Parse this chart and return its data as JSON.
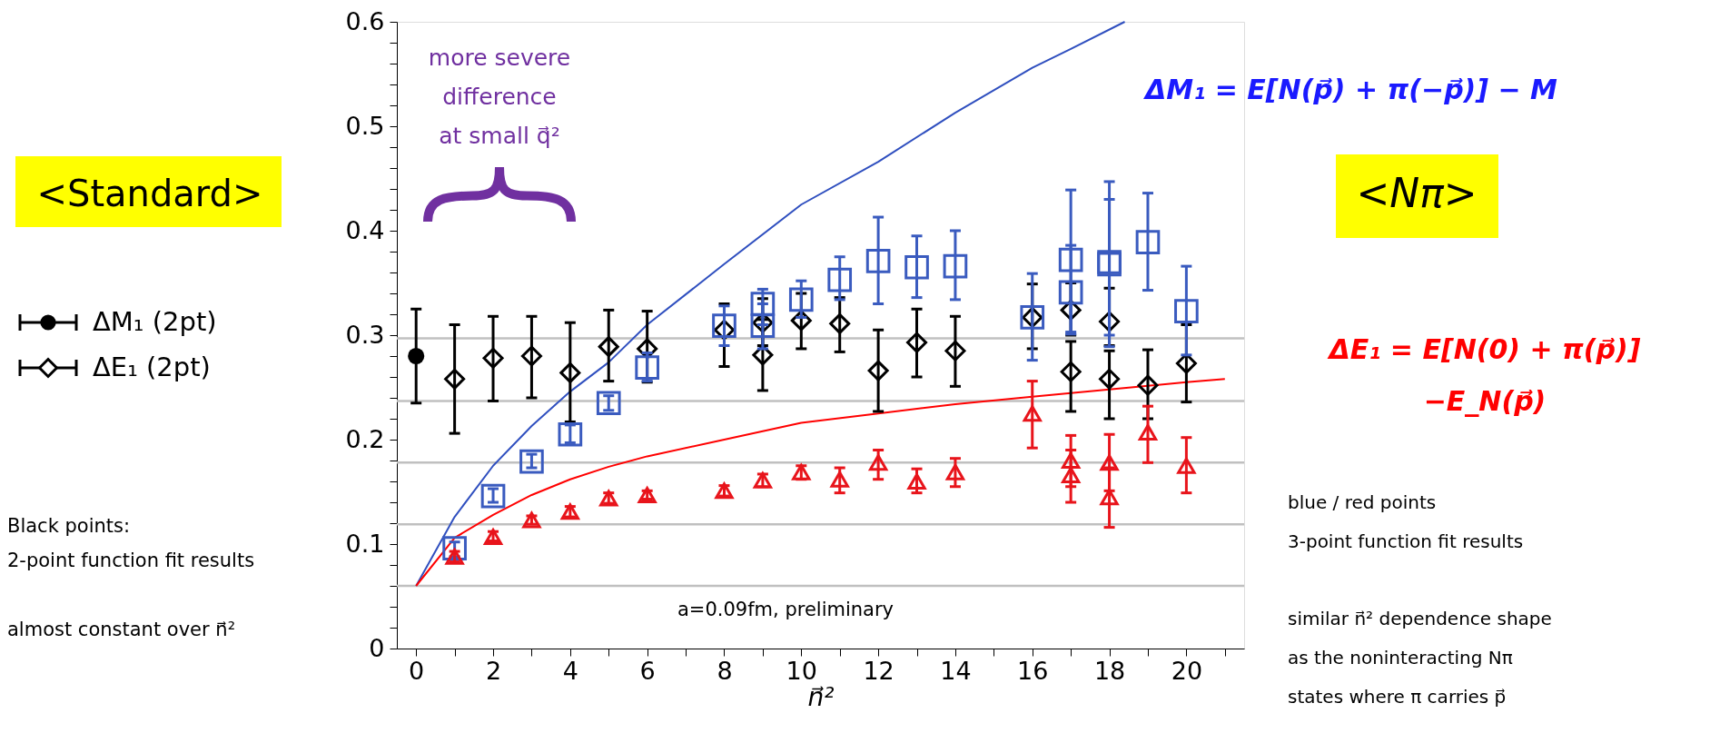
{
  "chart_data": {
    "type": "scatter",
    "xlabel": "n⃗²",
    "xlim": [
      -0.5,
      21.5
    ],
    "xticks": [
      0,
      {
        "value": 1,
        "label": null
      },
      2,
      {
        "value": 3,
        "label": null
      },
      4,
      {
        "value": 5,
        "label": null
      },
      6,
      {
        "value": 7,
        "label": null
      },
      8,
      {
        "value": 9,
        "label": null
      },
      10,
      {
        "value": 11,
        "label": null
      },
      12,
      {
        "value": 13,
        "label": null
      },
      14,
      {
        "value": 15,
        "label": null
      },
      16,
      {
        "value": 17,
        "label": null
      },
      18,
      {
        "value": 19,
        "label": null
      },
      20,
      {
        "value": 21,
        "label": null
      }
    ],
    "ylim": [
      0,
      0.6
    ],
    "yticks": [
      0,
      {
        "value": 0.02,
        "label": null
      },
      {
        "value": 0.04,
        "label": null
      },
      {
        "value": 0.06,
        "label": null
      },
      {
        "value": 0.08,
        "label": null
      },
      0.1,
      {
        "value": 0.12,
        "label": null
      },
      {
        "value": 0.14,
        "label": null
      },
      {
        "value": 0.16,
        "label": null
      },
      {
        "value": 0.18,
        "label": null
      },
      0.2,
      {
        "value": 0.22,
        "label": null
      },
      {
        "value": 0.24,
        "label": null
      },
      {
        "value": 0.26,
        "label": null
      },
      {
        "value": 0.28,
        "label": null
      },
      0.3,
      {
        "value": 0.32,
        "label": null
      },
      {
        "value": 0.34,
        "label": null
      },
      {
        "value": 0.36,
        "label": null
      },
      {
        "value": 0.38,
        "label": null
      },
      0.4,
      {
        "value": 0.42,
        "label": null
      },
      {
        "value": 0.44,
        "label": null
      },
      {
        "value": 0.46,
        "label": null
      },
      {
        "value": 0.48,
        "label": null
      },
      0.5,
      {
        "value": 0.52,
        "label": null
      },
      {
        "value": 0.54,
        "label": null
      },
      {
        "value": 0.56,
        "label": null
      },
      {
        "value": 0.58,
        "label": null
      },
      0.6
    ],
    "grid": false,
    "legend": "left",
    "ref_lines": [
      {
        "axis": "y",
        "value": 0.06,
        "color": "#c0c0c0"
      },
      {
        "axis": "y",
        "value": 0.119,
        "color": "#c0c0c0"
      },
      {
        "axis": "y",
        "value": 0.178,
        "color": "#c0c0c0"
      },
      {
        "axis": "y",
        "value": 0.237,
        "color": "#c0c0c0"
      },
      {
        "axis": "y",
        "value": 0.297,
        "color": "#c0c0c0"
      }
    ],
    "series": [
      {
        "type": "line",
        "color": "#2f4fbf",
        "marker": "none",
        "x": [
          0,
          1,
          2,
          3,
          4,
          5,
          6,
          8,
          10,
          12,
          14,
          16,
          17,
          18.4
        ],
        "values": [
          0.06,
          0.126,
          0.175,
          0.213,
          0.246,
          0.274,
          0.31,
          0.368,
          0.425,
          0.466,
          0.513,
          0.556,
          0.574,
          0.6
        ]
      },
      {
        "type": "line",
        "color": "#ff0000",
        "marker": "none",
        "x": [
          0,
          1,
          2,
          3,
          4,
          5,
          6,
          8,
          10,
          12,
          14,
          16,
          18,
          20,
          21
        ],
        "values": [
          0.06,
          0.106,
          0.128,
          0.147,
          0.162,
          0.174,
          0.184,
          0.2,
          0.216,
          0.225,
          0.234,
          0.241,
          0.248,
          0.255,
          0.258
        ]
      },
      {
        "name": "ΔE₁ (2pt)",
        "color": "#000000",
        "marker": "diamond",
        "x": [
          1,
          2,
          3,
          4,
          5,
          6,
          8,
          9,
          9,
          10,
          11,
          12,
          13,
          14,
          16,
          17,
          17,
          18,
          18,
          19,
          20
        ],
        "values": [
          0.258,
          0.278,
          0.28,
          0.264,
          0.289,
          0.287,
          0.305,
          0.312,
          0.281,
          0.314,
          0.311,
          0.266,
          0.293,
          0.285,
          0.317,
          0.324,
          0.265,
          0.313,
          0.258,
          0.252,
          0.273
        ],
        "errors": [
          [
            0.206,
            0.31
          ],
          [
            0.237,
            0.318
          ],
          [
            0.24,
            0.318
          ],
          [
            0.217,
            0.312
          ],
          [
            0.256,
            0.324
          ],
          [
            0.255,
            0.323
          ],
          [
            0.27,
            0.33
          ],
          [
            0.29,
            0.335
          ],
          [
            0.247,
            0.315
          ],
          [
            0.287,
            0.34
          ],
          [
            0.284,
            0.336
          ],
          [
            0.227,
            0.305
          ],
          [
            0.26,
            0.325
          ],
          [
            0.251,
            0.318
          ],
          [
            0.287,
            0.349
          ],
          [
            0.3,
            0.35
          ],
          [
            0.227,
            0.294
          ],
          [
            0.29,
            0.345
          ],
          [
            0.22,
            0.285
          ],
          [
            0.22,
            0.286
          ],
          [
            0.236,
            0.31
          ]
        ]
      },
      {
        "color": "#3a5bbf",
        "marker": "square",
        "x": [
          1,
          2,
          3,
          4,
          5,
          6,
          8,
          9,
          9,
          10,
          11,
          12,
          13,
          14,
          16,
          17,
          17,
          18,
          18,
          19,
          20
        ],
        "values": [
          0.096,
          0.146,
          0.179,
          0.205,
          0.235,
          0.269,
          0.309,
          0.33,
          0.309,
          0.334,
          0.353,
          0.371,
          0.365,
          0.366,
          0.317,
          0.372,
          0.341,
          0.37,
          0.368,
          0.389,
          0.323
        ],
        "errors": [
          [
            0.088,
            0.102
          ],
          [
            0.14,
            0.153
          ],
          [
            0.173,
            0.186
          ],
          [
            0.197,
            0.214
          ],
          [
            0.228,
            0.242
          ],
          [
            0.256,
            0.283
          ],
          [
            0.29,
            0.328
          ],
          [
            0.31,
            0.344
          ],
          [
            0.287,
            0.33
          ],
          [
            0.317,
            0.352
          ],
          [
            0.334,
            0.375
          ],
          [
            0.33,
            0.413
          ],
          [
            0.336,
            0.395
          ],
          [
            0.334,
            0.4
          ],
          [
            0.276,
            0.359
          ],
          [
            0.303,
            0.439
          ],
          [
            0.301,
            0.386
          ],
          [
            0.289,
            0.447
          ],
          [
            0.3,
            0.43
          ],
          [
            0.343,
            0.436
          ],
          [
            0.281,
            0.366
          ]
        ]
      },
      {
        "color": "#e8141b",
        "marker": "triangle",
        "x": [
          1,
          2,
          3,
          4,
          5,
          6,
          8,
          9,
          10,
          11,
          12,
          13,
          14,
          16,
          17,
          17,
          18,
          18,
          19,
          20
        ],
        "values": [
          0.088,
          0.107,
          0.123,
          0.131,
          0.144,
          0.147,
          0.151,
          0.161,
          0.169,
          0.162,
          0.178,
          0.16,
          0.169,
          0.225,
          0.18,
          0.166,
          0.178,
          0.145,
          0.207,
          0.175
        ],
        "errors": [
          [
            0.083,
            0.093
          ],
          [
            0.103,
            0.112
          ],
          [
            0.119,
            0.127
          ],
          [
            0.126,
            0.136
          ],
          [
            0.139,
            0.149
          ],
          [
            0.143,
            0.151
          ],
          [
            0.146,
            0.156
          ],
          [
            0.155,
            0.167
          ],
          [
            0.162,
            0.175
          ],
          [
            0.149,
            0.173
          ],
          [
            0.162,
            0.19
          ],
          [
            0.149,
            0.172
          ],
          [
            0.155,
            0.182
          ],
          [
            0.192,
            0.256
          ],
          [
            0.155,
            0.204
          ],
          [
            0.14,
            0.19
          ],
          [
            0.151,
            0.205
          ],
          [
            0.116,
            0.173
          ],
          [
            0.178,
            0.232
          ],
          [
            0.149,
            0.202
          ]
        ]
      },
      {
        "name": "ΔM₁ (2pt)",
        "color": "#000000",
        "marker": "circle",
        "x": [
          0
        ],
        "values": [
          0.28
        ],
        "errors": [
          [
            0.235,
            0.325
          ]
        ]
      }
    ],
    "annotations": [
      "<Standard>",
      "Black points:\n2-point function fit results\n\nalmost constant over n⃗²",
      "more severe\ndifference\nat small q⃗²",
      "a=0.09fm, preliminary",
      "ΔM₁ = E[N(p⃗) + π(−p⃗)] − M",
      "<Nπ>",
      "ΔE₁ = E[N(0) + π(p⃗)]\n−E_N(p⃗)",
      "blue / red points\n3-point function fit results",
      "similar n⃗² dependence shape\nas the noninteracting Nπ\nstates where π carries p⃗"
    ]
  }
}
